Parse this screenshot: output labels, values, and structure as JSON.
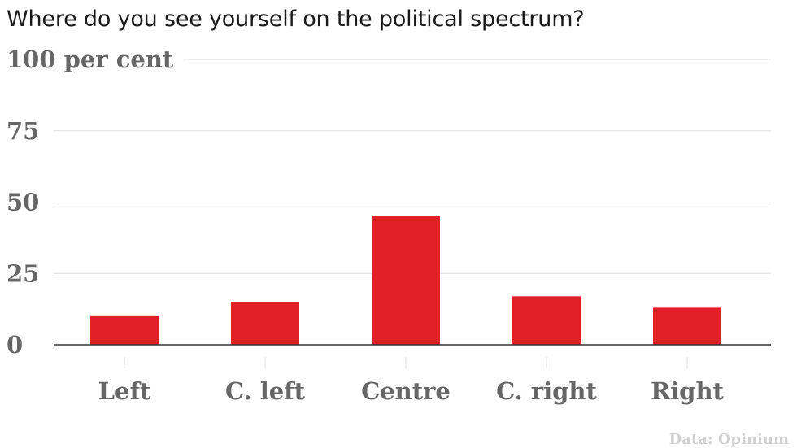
{
  "chart_data": {
    "type": "bar",
    "title": "Where do you see yourself on the political spectrum?",
    "categories": [
      "Left",
      "C. left",
      "Centre",
      "C. right",
      "Right"
    ],
    "values": [
      10,
      15,
      45,
      17,
      13
    ],
    "ylim": [
      0,
      100
    ],
    "yticks": [
      0,
      25,
      50,
      75,
      100
    ],
    "ytick_labels": [
      "0",
      "25",
      "50",
      "75",
      "100 per cent"
    ],
    "xlabel": "",
    "ylabel": "",
    "grid": true,
    "bar_color": "#e01f26",
    "source": "Data: Opinium"
  }
}
